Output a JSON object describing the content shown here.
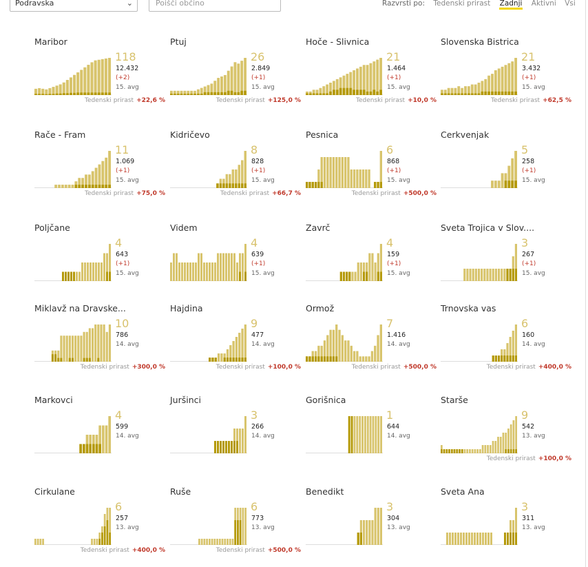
{
  "toolbar": {
    "region_select": "Podravska",
    "search_placeholder": "Poišči občino",
    "sort_label": "Razvrsti po:",
    "sort_options": [
      "Tedenski prirast",
      "Zadnji",
      "Aktivni",
      "Vsi"
    ],
    "sort_active": "Zadnji"
  },
  "colors": {
    "bar_light": "#d8c46c",
    "bar_dark": "#b59a0a",
    "growth_red": "#c0392b"
  },
  "growth_label": "Tedenski prirast",
  "municipalities": [
    {
      "name": "Maribor",
      "last": "118",
      "total": "12.432",
      "delta": "(+2)",
      "avg": "15. avg",
      "growth": "+22,6 %",
      "series": [
        20,
        22,
        20,
        18,
        22,
        26,
        30,
        34,
        40,
        48,
        56,
        64,
        72,
        80,
        88,
        96,
        104,
        110,
        112,
        114,
        116,
        118
      ],
      "dark": [
        4,
        4,
        4,
        3,
        4,
        4,
        5,
        5,
        6,
        6,
        7,
        7,
        8,
        8,
        8,
        8,
        8,
        8,
        8,
        8,
        8,
        8
      ]
    },
    {
      "name": "Ptuj",
      "last": "26",
      "total": "2.849",
      "delta": "(+1)",
      "avg": "15. avg",
      "growth": "+125,0 %",
      "series": [
        3,
        3,
        3,
        3,
        3,
        3,
        3,
        3,
        4,
        5,
        6,
        7,
        8,
        10,
        12,
        13,
        14,
        17,
        20,
        23,
        22,
        24,
        26
      ],
      "dark": [
        1,
        1,
        1,
        1,
        1,
        1,
        1,
        1,
        1,
        1,
        2,
        2,
        2,
        2,
        2,
        2,
        2,
        3,
        3,
        2,
        2,
        3,
        3
      ]
    },
    {
      "name": "Hoče - Slivnica",
      "last": "21",
      "total": "1.464",
      "delta": "(+1)",
      "avg": "15. avg",
      "growth": "+10,0 %",
      "series": [
        2,
        2,
        3,
        3,
        4,
        5,
        6,
        7,
        8,
        9,
        10,
        11,
        12,
        13,
        14,
        15,
        16,
        17,
        17,
        18,
        19,
        20,
        21
      ],
      "dark": [
        1,
        1,
        1,
        1,
        1,
        1,
        1,
        2,
        3,
        3,
        4,
        4,
        4,
        4,
        3,
        3,
        3,
        3,
        2,
        2,
        3,
        2,
        3
      ]
    },
    {
      "name": "Slovenska Bistrica",
      "last": "21",
      "total": "3.432",
      "delta": "(+1)",
      "avg": "15. avg",
      "growth": "+62,5 %",
      "series": [
        3,
        3,
        4,
        4,
        4,
        5,
        4,
        5,
        5,
        6,
        6,
        7,
        8,
        9,
        11,
        12,
        14,
        15,
        16,
        17,
        18,
        19,
        21
      ],
      "dark": [
        1,
        1,
        1,
        1,
        1,
        1,
        1,
        1,
        1,
        1,
        1,
        1,
        2,
        2,
        2,
        2,
        2,
        2,
        2,
        2,
        2,
        2,
        2
      ]
    },
    {
      "name": "Rače - Fram",
      "last": "11",
      "total": "1.069",
      "delta": "(+1)",
      "avg": "15. avg",
      "growth": "+75,0 %",
      "series": [
        0,
        0,
        0,
        0,
        0,
        0,
        1,
        1,
        1,
        1,
        1,
        1,
        2,
        3,
        3,
        4,
        4,
        5,
        6,
        7,
        8,
        9,
        11
      ],
      "dark": [
        0,
        0,
        0,
        0,
        0,
        0,
        0,
        0,
        0,
        0,
        0,
        0,
        1,
        1,
        1,
        1,
        1,
        1,
        1,
        1,
        1,
        1,
        1
      ]
    },
    {
      "name": "Kidričevo",
      "last": "8",
      "total": "828",
      "delta": "(+1)",
      "avg": "15. avg",
      "growth": "+66,7 %",
      "series": [
        0,
        0,
        0,
        0,
        0,
        0,
        0,
        0,
        0,
        0,
        0,
        0,
        0,
        0,
        0,
        1,
        2,
        2,
        3,
        3,
        4,
        4,
        5,
        6,
        8
      ],
      "dark": [
        0,
        0,
        0,
        0,
        0,
        0,
        0,
        0,
        0,
        0,
        0,
        0,
        0,
        0,
        0,
        1,
        1,
        1,
        1,
        1,
        1,
        1,
        1,
        1,
        1
      ]
    },
    {
      "name": "Pesnica",
      "last": "6",
      "total": "868",
      "delta": "(+1)",
      "avg": "15. avg",
      "growth": "+500,0 %",
      "series": [
        1,
        1,
        1,
        1,
        3,
        5,
        5,
        5,
        5,
        5,
        5,
        5,
        5,
        5,
        5,
        3,
        3,
        3,
        3,
        3,
        3,
        3,
        0,
        1,
        1,
        6
      ],
      "dark": [
        1,
        1,
        1,
        1,
        1,
        1,
        0,
        0,
        0,
        0,
        0,
        0,
        0,
        0,
        0,
        0,
        0,
        0,
        0,
        0,
        0,
        0,
        0,
        1,
        1,
        1
      ]
    },
    {
      "name": "Cerkvenjak",
      "last": "5",
      "total": "258",
      "delta": "(+1)",
      "avg": "15. avg",
      "growth": "",
      "series": [
        0,
        0,
        0,
        0,
        0,
        0,
        0,
        0,
        0,
        0,
        0,
        0,
        0,
        0,
        0,
        1,
        1,
        1,
        2,
        2,
        3,
        4,
        5
      ],
      "dark": [
        0,
        0,
        0,
        0,
        0,
        0,
        0,
        0,
        0,
        0,
        0,
        0,
        0,
        0,
        0,
        0,
        0,
        0,
        0,
        1,
        1,
        1,
        1
      ]
    },
    {
      "name": "Poljčane",
      "last": "4",
      "total": "643",
      "delta": "(+1)",
      "avg": "15. avg",
      "growth": "",
      "series": [
        0,
        0,
        0,
        0,
        0,
        0,
        0,
        0,
        0,
        0,
        1,
        1,
        1,
        1,
        1,
        1,
        1,
        2,
        2,
        2,
        2,
        2,
        2,
        2,
        2,
        3,
        3,
        4
      ],
      "dark": [
        0,
        0,
        0,
        0,
        0,
        0,
        0,
        0,
        0,
        0,
        1,
        1,
        1,
        1,
        1,
        0,
        0,
        0,
        0,
        0,
        0,
        0,
        0,
        0,
        0,
        0,
        1,
        1
      ]
    },
    {
      "name": "Videm",
      "last": "4",
      "total": "639",
      "delta": "(+1)",
      "avg": "15. avg",
      "growth": "",
      "series": [
        2,
        3,
        3,
        2,
        2,
        2,
        2,
        2,
        2,
        2,
        3,
        3,
        2,
        2,
        2,
        2,
        2,
        3,
        3,
        3,
        3,
        3,
        3,
        3,
        2,
        3,
        3,
        4
      ],
      "dark": [
        0,
        0,
        0,
        0,
        0,
        0,
        0,
        0,
        0,
        0,
        0,
        0,
        0,
        0,
        0,
        0,
        0,
        0,
        0,
        0,
        0,
        0,
        0,
        0,
        0,
        1,
        0,
        1
      ]
    },
    {
      "name": "Zavrč",
      "last": "4",
      "total": "159",
      "delta": "(+1)",
      "avg": "15. avg",
      "growth": "",
      "series": [
        0,
        0,
        0,
        0,
        0,
        0,
        0,
        0,
        0,
        0,
        0,
        0,
        1,
        1,
        1,
        1,
        1,
        1,
        2,
        2,
        2,
        2,
        3,
        3,
        2,
        3,
        4
      ],
      "dark": [
        0,
        0,
        0,
        0,
        0,
        0,
        0,
        0,
        0,
        0,
        0,
        0,
        1,
        1,
        1,
        1,
        0,
        0,
        0,
        0,
        1,
        1,
        0,
        0,
        0,
        1,
        1
      ]
    },
    {
      "name": "Sveta Trojica v Slov....",
      "last": "3",
      "total": "267",
      "delta": "(+1)",
      "avg": "15. avg",
      "growth": "",
      "series": [
        0,
        0,
        0,
        0,
        0,
        0,
        0,
        0,
        1,
        1,
        1,
        1,
        1,
        1,
        1,
        1,
        1,
        1,
        1,
        1,
        1,
        1,
        1,
        1,
        1,
        2,
        3
      ],
      "dark": [
        0,
        0,
        0,
        0,
        0,
        0,
        0,
        0,
        0,
        0,
        0,
        0,
        0,
        0,
        0,
        0,
        0,
        0,
        0,
        0,
        0,
        0,
        0,
        1,
        1,
        1,
        1
      ]
    },
    {
      "name": "Miklavž na Dravske...",
      "last": "10",
      "total": "786",
      "delta": "",
      "avg": "14. avg",
      "growth": "+300,0 %",
      "series": [
        0,
        0,
        0,
        0,
        0,
        0,
        3,
        3,
        3,
        7,
        7,
        7,
        7,
        7,
        7,
        7,
        7,
        8,
        8,
        9,
        9,
        10,
        10,
        10,
        10,
        8,
        10
      ],
      "dark": [
        0,
        0,
        0,
        0,
        0,
        0,
        2,
        2,
        1,
        1,
        0,
        0,
        1,
        1,
        0,
        0,
        0,
        1,
        1,
        1,
        0,
        0,
        1,
        0,
        0,
        0,
        0
      ]
    },
    {
      "name": "Hajdina",
      "last": "9",
      "total": "477",
      "delta": "",
      "avg": "14. avg",
      "growth": "+100,0 %",
      "series": [
        0,
        0,
        0,
        0,
        0,
        0,
        0,
        0,
        0,
        0,
        0,
        0,
        0,
        1,
        1,
        1,
        2,
        2,
        2,
        3,
        4,
        5,
        6,
        7,
        8,
        9
      ],
      "dark": [
        0,
        0,
        0,
        0,
        0,
        0,
        0,
        0,
        0,
        0,
        0,
        0,
        0,
        1,
        1,
        1,
        0,
        0,
        1,
        1,
        1,
        1,
        1,
        1,
        1,
        1
      ]
    },
    {
      "name": "Ormož",
      "last": "7",
      "total": "1.416",
      "delta": "",
      "avg": "14. avg",
      "growth": "+500,0 %",
      "series": [
        1,
        1,
        2,
        2,
        3,
        3,
        4,
        5,
        6,
        6,
        7,
        6,
        5,
        4,
        4,
        3,
        2,
        2,
        1,
        1,
        1,
        1,
        2,
        3,
        5,
        7
      ],
      "dark": [
        1,
        1,
        1,
        1,
        1,
        1,
        1,
        1,
        1,
        1,
        1,
        0,
        0,
        0,
        0,
        0,
        0,
        0,
        0,
        0,
        0,
        0,
        0,
        0,
        0,
        0
      ]
    },
    {
      "name": "Trnovska vas",
      "last": "6",
      "total": "160",
      "delta": "",
      "avg": "14. avg",
      "growth": "+400,0 %",
      "series": [
        0,
        0,
        0,
        0,
        0,
        0,
        0,
        0,
        0,
        0,
        0,
        0,
        0,
        0,
        0,
        0,
        0,
        0,
        1,
        1,
        1,
        2,
        2,
        3,
        4,
        5,
        6
      ],
      "dark": [
        0,
        0,
        0,
        0,
        0,
        0,
        0,
        0,
        0,
        0,
        0,
        0,
        0,
        0,
        0,
        0,
        0,
        0,
        1,
        1,
        1,
        1,
        1,
        1,
        1,
        1,
        1
      ]
    },
    {
      "name": "Markovci",
      "last": "4",
      "total": "599",
      "delta": "",
      "avg": "14. avg",
      "growth": "",
      "series": [
        0,
        0,
        0,
        0,
        0,
        0,
        0,
        0,
        0,
        0,
        0,
        0,
        0,
        0,
        1,
        1,
        2,
        2,
        2,
        2,
        3,
        3,
        3,
        4
      ],
      "dark": [
        0,
        0,
        0,
        0,
        0,
        0,
        0,
        0,
        0,
        0,
        0,
        0,
        0,
        0,
        1,
        1,
        1,
        1,
        1,
        1,
        1,
        0,
        0,
        0
      ]
    },
    {
      "name": "Juršinci",
      "last": "3",
      "total": "266",
      "delta": "",
      "avg": "14. avg",
      "growth": "",
      "series": [
        0,
        0,
        0,
        0,
        0,
        0,
        0,
        0,
        0,
        0,
        0,
        0,
        0,
        0,
        0,
        0,
        1,
        1,
        1,
        1,
        1,
        1,
        1,
        2,
        2,
        2,
        2,
        3
      ],
      "dark": [
        0,
        0,
        0,
        0,
        0,
        0,
        0,
        0,
        0,
        0,
        0,
        0,
        0,
        0,
        0,
        0,
        1,
        1,
        1,
        1,
        1,
        1,
        1,
        1,
        1,
        0,
        0,
        0
      ]
    },
    {
      "name": "Gorišnica",
      "last": "1",
      "total": "644",
      "delta": "",
      "avg": "14. avg",
      "growth": "",
      "series": [
        0,
        0,
        0,
        0,
        0,
        0,
        0,
        0,
        0,
        0,
        0,
        0,
        0,
        0,
        0,
        0,
        1,
        1,
        1,
        1,
        1,
        1,
        1,
        1,
        1,
        1,
        1,
        1,
        1
      ],
      "dark": [
        0,
        0,
        0,
        0,
        0,
        0,
        0,
        0,
        0,
        0,
        0,
        0,
        0,
        0,
        0,
        0,
        1,
        1,
        0,
        0,
        0,
        0,
        0,
        0,
        0,
        0,
        0,
        0,
        0
      ]
    },
    {
      "name": "Starše",
      "last": "9",
      "total": "542",
      "delta": "",
      "avg": "13. avg",
      "growth": "+100,0 %",
      "series": [
        2,
        1,
        1,
        1,
        1,
        1,
        1,
        1,
        1,
        1,
        1,
        1,
        1,
        1,
        1,
        1,
        2,
        2,
        2,
        2,
        3,
        3,
        4,
        4,
        5,
        5,
        6,
        7,
        8,
        9
      ],
      "dark": [
        1,
        1,
        1,
        1,
        1,
        1,
        1,
        1,
        1,
        0,
        0,
        0,
        0,
        0,
        0,
        0,
        0,
        0,
        0,
        0,
        0,
        0,
        0,
        0,
        0,
        1,
        1,
        1,
        1,
        1
      ]
    },
    {
      "name": "Cirkulane",
      "last": "6",
      "total": "257",
      "delta": "",
      "avg": "13. avg",
      "growth": "+400,0 %",
      "series": [
        1,
        1,
        1,
        1,
        0,
        0,
        0,
        0,
        0,
        0,
        0,
        0,
        0,
        0,
        0,
        0,
        0,
        0,
        0,
        0,
        0,
        0,
        1,
        1,
        1,
        2,
        3,
        5,
        6,
        6
      ],
      "dark": [
        0,
        0,
        0,
        0,
        0,
        0,
        0,
        0,
        0,
        0,
        0,
        0,
        0,
        0,
        0,
        0,
        0,
        0,
        0,
        0,
        0,
        0,
        0,
        0,
        0,
        1,
        2,
        3,
        4,
        2
      ]
    },
    {
      "name": "Ruše",
      "last": "6",
      "total": "773",
      "delta": "",
      "avg": "13. avg",
      "growth": "+500,0 %",
      "series": [
        0,
        0,
        0,
        0,
        0,
        0,
        0,
        0,
        0,
        0,
        0,
        1,
        1,
        1,
        1,
        1,
        1,
        1,
        1,
        1,
        1,
        1,
        1,
        1,
        1,
        6,
        6,
        6,
        6,
        6
      ],
      "dark": [
        0,
        0,
        0,
        0,
        0,
        0,
        0,
        0,
        0,
        0,
        0,
        0,
        0,
        0,
        0,
        0,
        0,
        0,
        0,
        0,
        0,
        0,
        0,
        0,
        0,
        4,
        4,
        4,
        0,
        0
      ]
    },
    {
      "name": "Benedikt",
      "last": "3",
      "total": "304",
      "delta": "",
      "avg": "13. avg",
      "growth": "",
      "series": [
        0,
        0,
        0,
        0,
        0,
        0,
        0,
        0,
        0,
        0,
        0,
        0,
        0,
        0,
        0,
        0,
        0,
        0,
        1,
        2,
        2,
        2,
        2,
        2,
        3,
        3,
        3
      ],
      "dark": [
        0,
        0,
        0,
        0,
        0,
        0,
        0,
        0,
        0,
        0,
        0,
        0,
        0,
        0,
        0,
        0,
        0,
        0,
        1,
        1,
        0,
        0,
        0,
        0,
        0,
        0,
        0
      ]
    },
    {
      "name": "Sveta Ana",
      "last": "3",
      "total": "311",
      "delta": "",
      "avg": "13. avg",
      "growth": "",
      "series": [
        0,
        0,
        1,
        1,
        1,
        1,
        1,
        1,
        1,
        1,
        1,
        1,
        1,
        1,
        1,
        1,
        1,
        1,
        1,
        0,
        0,
        0,
        0,
        1,
        1,
        2,
        2,
        3
      ],
      "dark": [
        0,
        0,
        0,
        0,
        0,
        0,
        0,
        0,
        0,
        0,
        0,
        0,
        0,
        0,
        0,
        0,
        0,
        0,
        0,
        0,
        0,
        0,
        0,
        1,
        1,
        1,
        1,
        1
      ]
    }
  ]
}
